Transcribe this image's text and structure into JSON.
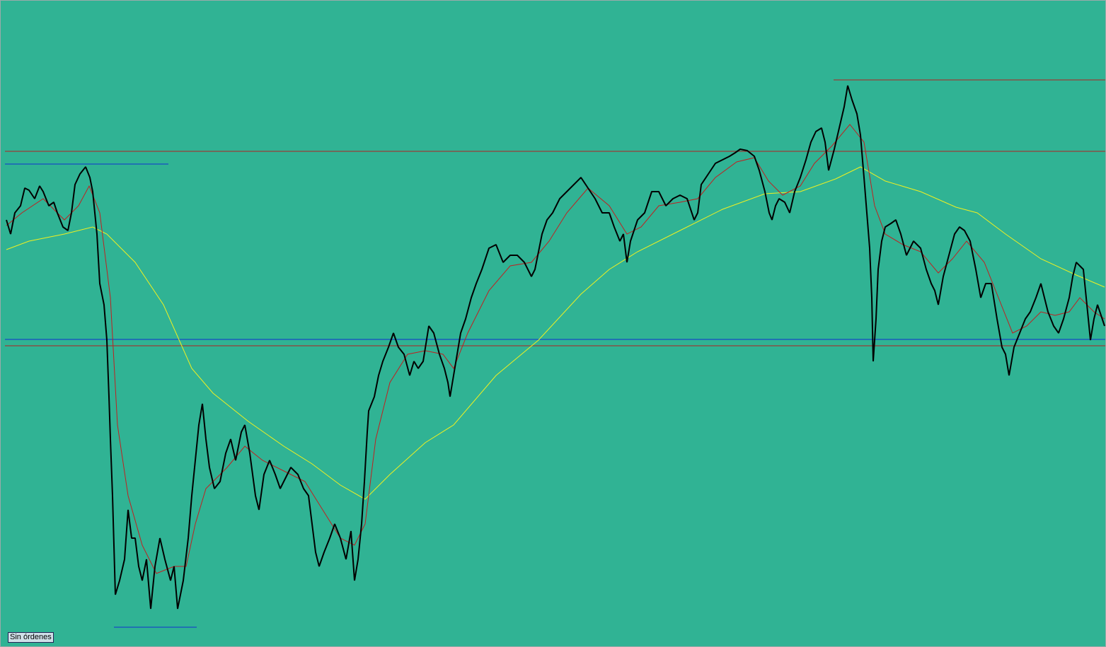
{
  "status_label": "Sin órdenes"
}
